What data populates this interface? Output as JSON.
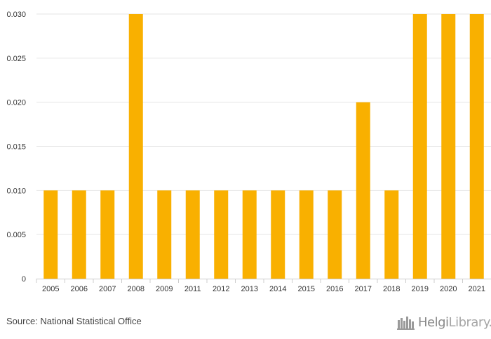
{
  "chart_data": {
    "type": "bar",
    "categories": [
      "2005",
      "2006",
      "2007",
      "2008",
      "2009",
      "2011",
      "2012",
      "2013",
      "2014",
      "2015",
      "2016",
      "2017",
      "2018",
      "2019",
      "2020",
      "2021"
    ],
    "values": [
      0.01,
      0.01,
      0.01,
      0.03,
      0.01,
      0.01,
      0.01,
      0.01,
      0.01,
      0.01,
      0.01,
      0.02,
      0.01,
      0.03,
      0.03,
      0.03
    ],
    "y_ticks": [
      0,
      0.005,
      0.01,
      0.015,
      0.02,
      0.025,
      0.03
    ],
    "y_tick_labels": [
      "0",
      "0.005",
      "0.010",
      "0.015",
      "0.020",
      "0.025",
      "0.030"
    ],
    "ylim": [
      0,
      0.03
    ],
    "title": "",
    "xlabel": "",
    "ylabel": "",
    "grid": true,
    "bar_color": "#F9B000"
  },
  "footer": {
    "source": "Source: National Statistical Office",
    "logo_bold": "Helgi",
    "logo_light": "Library."
  }
}
